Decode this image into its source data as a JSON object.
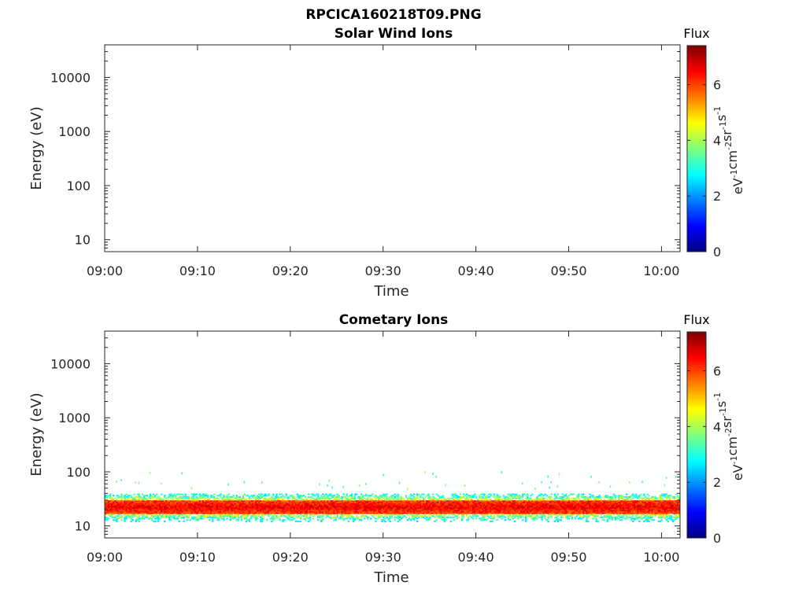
{
  "figure": {
    "title": "RPCICA160218T09.PNG"
  },
  "colorbar": {
    "label": "Flux",
    "unit_base": [
      "eV",
      "cm",
      "sr",
      "s"
    ],
    "unit_exp": [
      "-1",
      "-2",
      "-1",
      "-1"
    ],
    "ticks": [
      0,
      2,
      4,
      6
    ],
    "range": [
      0,
      7.4
    ],
    "colors": [
      "#00007f",
      "#0000ff",
      "#007fff",
      "#00ffff",
      "#7fff7f",
      "#ffff00",
      "#ff7f00",
      "#ff0000",
      "#7f0000"
    ]
  },
  "chart_data": [
    {
      "type": "heatmap",
      "title": "Solar Wind Ions",
      "xlabel": "Time",
      "ylabel": "Energy (eV)",
      "xlim": [
        "09:00",
        "10:02"
      ],
      "ylim": [
        6,
        40000
      ],
      "yscale": "log",
      "x_ticks": [
        "09:00",
        "09:10",
        "09:20",
        "09:30",
        "09:40",
        "09:50",
        "10:00"
      ],
      "y_ticks": [
        10,
        100,
        1000,
        10000
      ],
      "y_tick_labels": [
        "10",
        "100",
        "1000",
        "10000"
      ],
      "flux_band": null
    },
    {
      "type": "heatmap",
      "title": "Cometary Ions",
      "xlabel": "Time",
      "ylabel": "Energy (eV)",
      "xlim": [
        "09:00",
        "10:02"
      ],
      "ylim": [
        6,
        40000
      ],
      "yscale": "log",
      "x_ticks": [
        "09:00",
        "09:10",
        "09:20",
        "09:30",
        "09:40",
        "09:50",
        "10:00"
      ],
      "y_ticks": [
        10,
        100,
        1000,
        10000
      ],
      "y_tick_labels": [
        "10",
        "100",
        "1000",
        "10000"
      ],
      "flux_band": {
        "energy_peak_eV": [
          17,
          30
        ],
        "energy_extent_eV": [
          10,
          42
        ],
        "peak_flux": 7,
        "sparse_flux": 3,
        "time_range": [
          "09:00",
          "10:02"
        ]
      }
    }
  ]
}
